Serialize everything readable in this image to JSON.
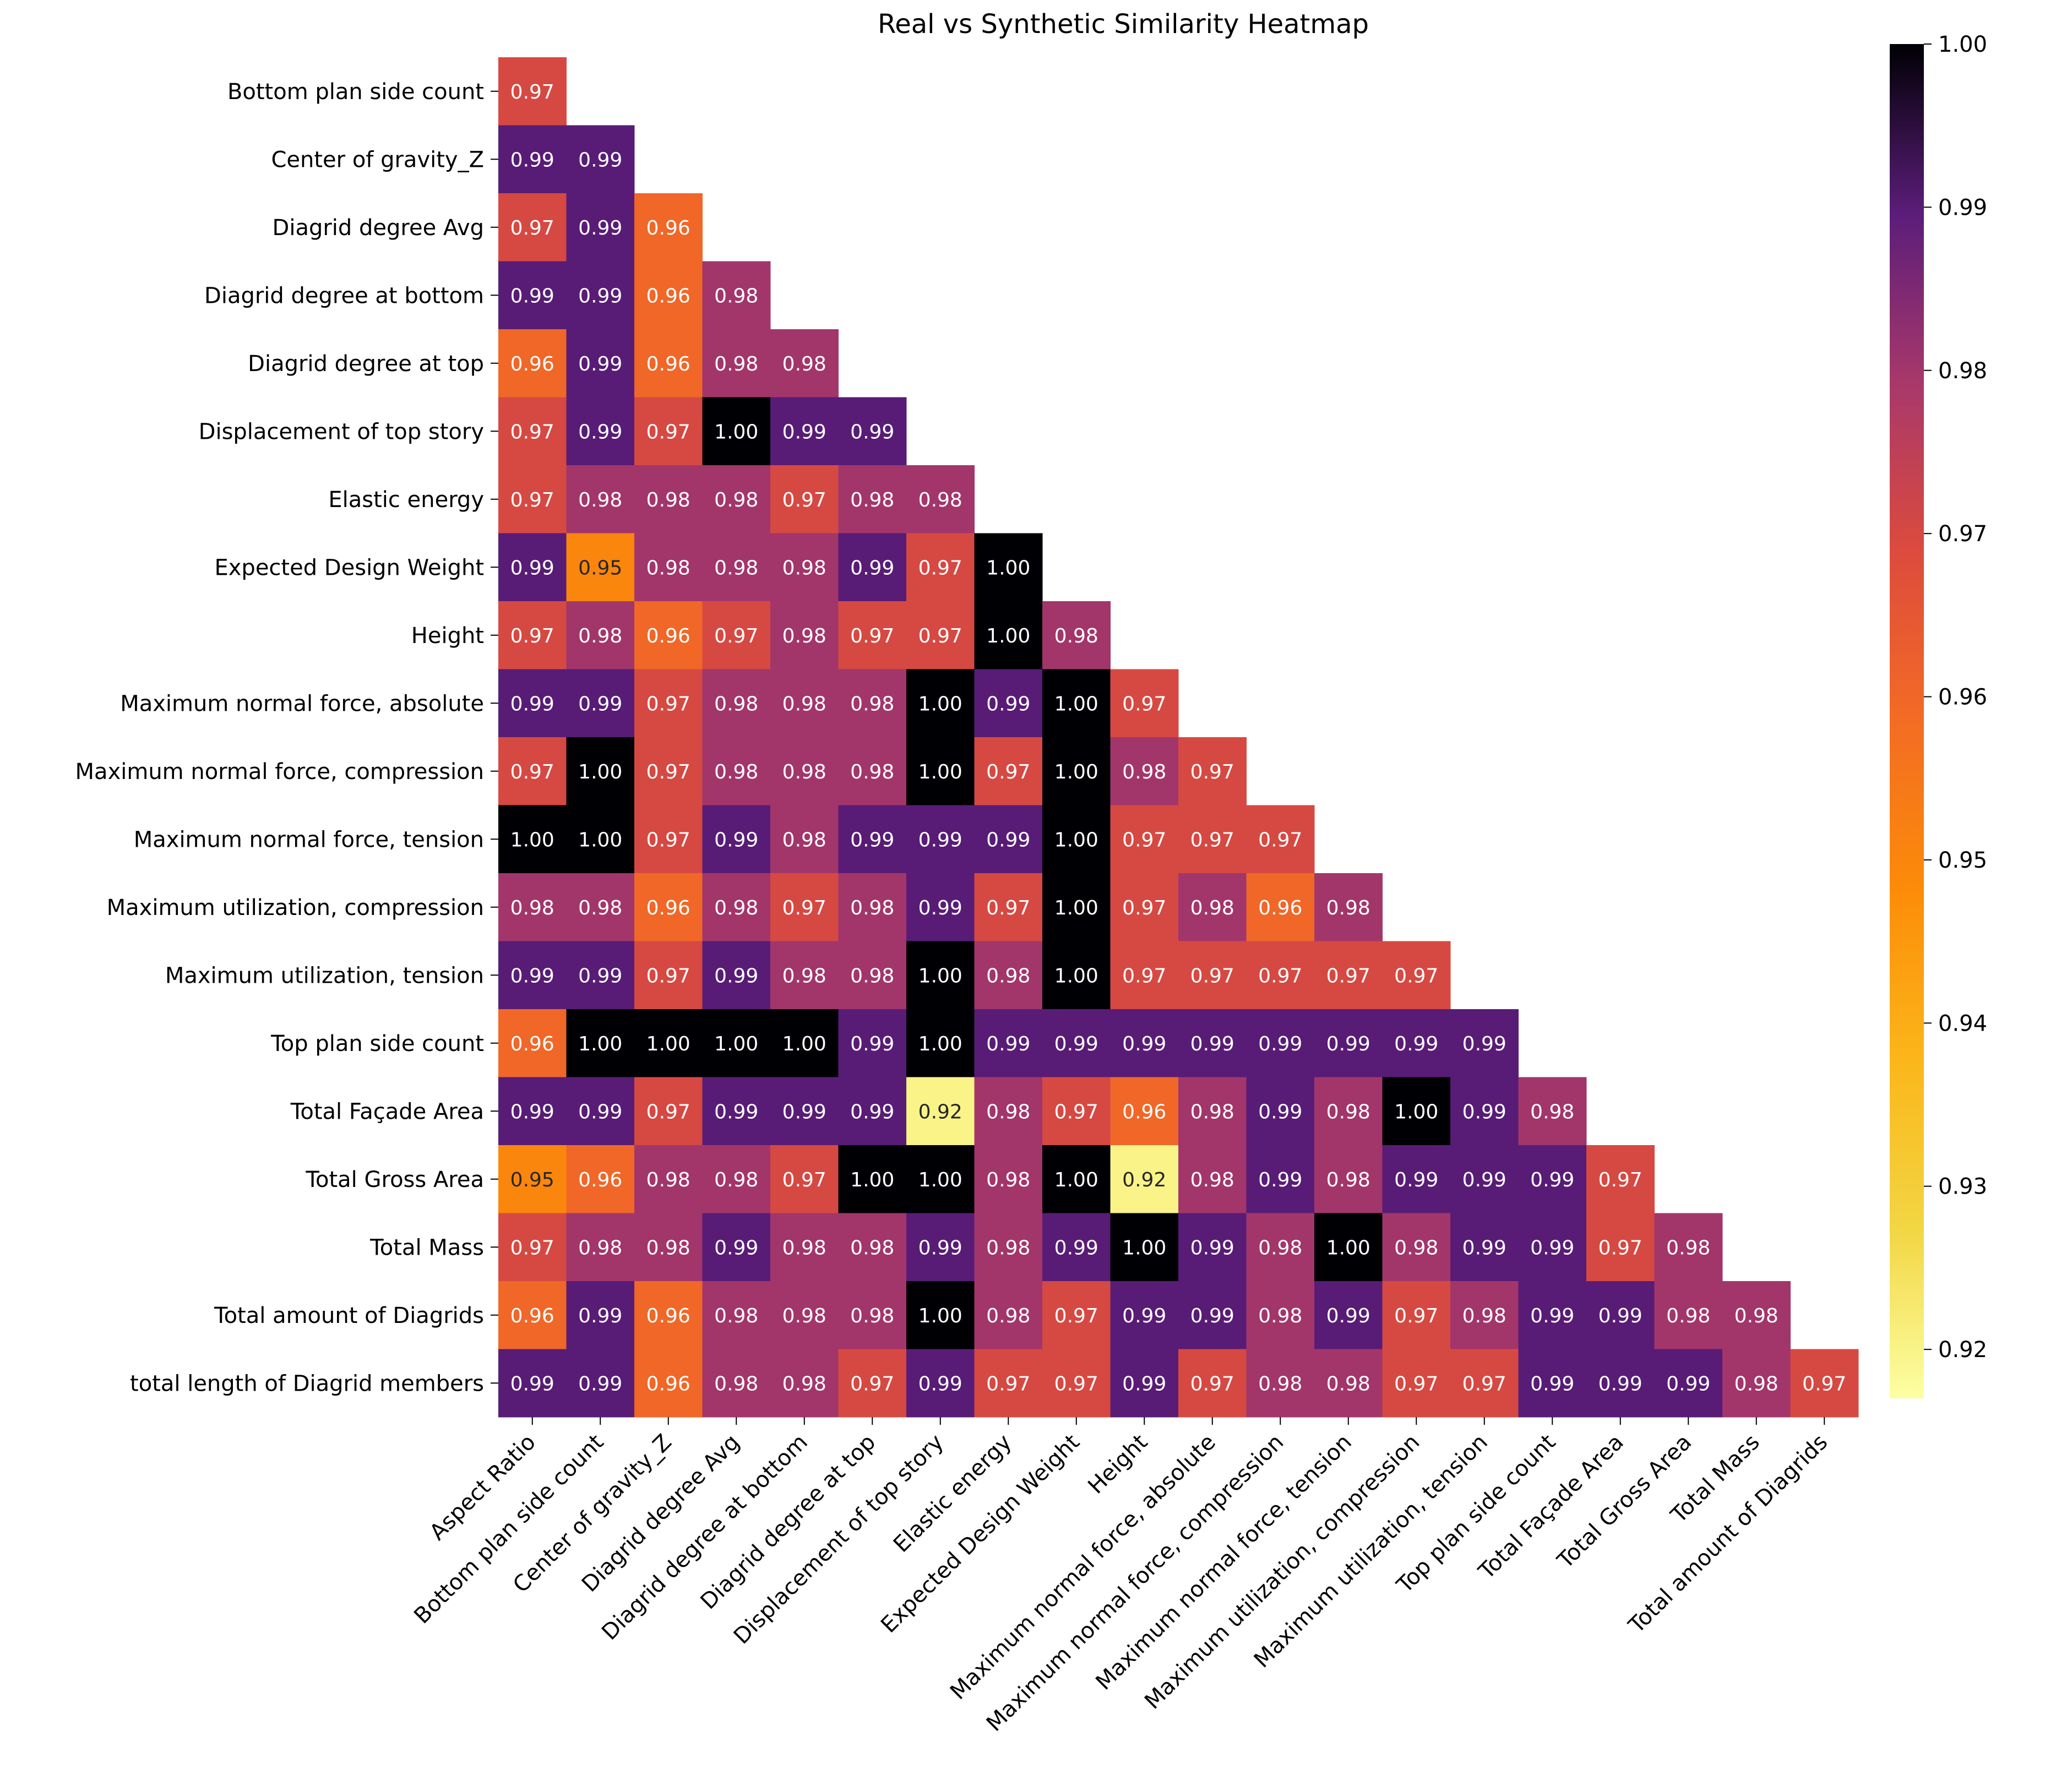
{
  "chart_data": {
    "type": "heatmap",
    "title": "Real vs Synthetic Similarity Heatmap",
    "colormap": "inferno_r",
    "x_labels": [
      "Aspect Ratio",
      "Bottom plan side count",
      "Center of gravity_Z",
      "Diagrid degree Avg",
      "Diagrid degree at bottom",
      "Diagrid degree at top",
      "Displacement of top story",
      "Elastic energy",
      "Expected Design Weight",
      "Height",
      "Maximum normal force, absolute",
      "Maximum normal force, compression",
      "Maximum normal force, tension",
      "Maximum utilization, compression",
      "Maximum utilization, tension",
      "Top plan side count",
      "Total Façade Area",
      "Total Gross Area",
      "Total Mass",
      "Total amount of Diagrids"
    ],
    "y_labels": [
      "Bottom plan side count",
      "Center of gravity_Z",
      "Diagrid degree Avg",
      "Diagrid degree at bottom",
      "Diagrid degree at top",
      "Displacement of top story",
      "Elastic energy",
      "Expected Design Weight",
      "Height",
      "Maximum normal force, absolute",
      "Maximum normal force, compression",
      "Maximum normal force, tension",
      "Maximum utilization, compression",
      "Maximum utilization, tension",
      "Top plan side count",
      "Total Façade Area",
      "Total Gross Area",
      "Total Mass",
      "Total amount of Diagrids",
      "total length of Diagrid members"
    ],
    "values": [
      [
        0.97
      ],
      [
        0.99,
        0.99
      ],
      [
        0.97,
        0.99,
        0.96
      ],
      [
        0.99,
        0.99,
        0.96,
        0.98
      ],
      [
        0.96,
        0.99,
        0.96,
        0.98,
        0.98
      ],
      [
        0.97,
        0.99,
        0.97,
        1.0,
        0.99,
        0.99
      ],
      [
        0.97,
        0.98,
        0.98,
        0.98,
        0.97,
        0.98,
        0.98
      ],
      [
        0.99,
        0.95,
        0.98,
        0.98,
        0.98,
        0.99,
        0.97,
        1.0
      ],
      [
        0.97,
        0.98,
        0.96,
        0.97,
        0.98,
        0.97,
        0.97,
        1.0,
        0.98
      ],
      [
        0.99,
        0.99,
        0.97,
        0.98,
        0.98,
        0.98,
        1.0,
        0.99,
        1.0,
        0.97
      ],
      [
        0.97,
        1.0,
        0.97,
        0.98,
        0.98,
        0.98,
        1.0,
        0.97,
        1.0,
        0.98,
        0.97
      ],
      [
        1.0,
        1.0,
        0.97,
        0.99,
        0.98,
        0.99,
        0.99,
        0.99,
        1.0,
        0.97,
        0.97,
        0.97
      ],
      [
        0.98,
        0.98,
        0.96,
        0.98,
        0.97,
        0.98,
        0.99,
        0.97,
        1.0,
        0.97,
        0.98,
        0.96,
        0.98
      ],
      [
        0.99,
        0.99,
        0.97,
        0.99,
        0.98,
        0.98,
        1.0,
        0.98,
        1.0,
        0.97,
        0.97,
        0.97,
        0.97,
        0.97
      ],
      [
        0.96,
        1.0,
        1.0,
        1.0,
        1.0,
        0.99,
        1.0,
        0.99,
        0.99,
        0.99,
        0.99,
        0.99,
        0.99,
        0.99,
        0.99
      ],
      [
        0.99,
        0.99,
        0.97,
        0.99,
        0.99,
        0.99,
        0.92,
        0.98,
        0.97,
        0.96,
        0.98,
        0.99,
        0.98,
        1.0,
        0.99,
        0.98
      ],
      [
        0.95,
        0.96,
        0.98,
        0.98,
        0.97,
        1.0,
        1.0,
        0.98,
        1.0,
        0.92,
        0.98,
        0.99,
        0.98,
        0.99,
        0.99,
        0.99,
        0.97
      ],
      [
        0.97,
        0.98,
        0.98,
        0.99,
        0.98,
        0.98,
        0.99,
        0.98,
        0.99,
        1.0,
        0.99,
        0.98,
        1.0,
        0.98,
        0.99,
        0.99,
        0.97,
        0.98
      ],
      [
        0.96,
        0.99,
        0.96,
        0.98,
        0.98,
        0.98,
        1.0,
        0.98,
        0.97,
        0.99,
        0.99,
        0.98,
        0.99,
        0.97,
        0.98,
        0.99,
        0.99,
        0.98,
        0.98
      ],
      [
        0.99,
        0.99,
        0.96,
        0.98,
        0.98,
        0.97,
        0.99,
        0.97,
        0.97,
        0.99,
        0.97,
        0.98,
        0.98,
        0.97,
        0.97,
        0.99,
        0.99,
        0.99,
        0.98,
        0.97
      ]
    ],
    "colorbar": {
      "range": [
        0.917,
        1.0
      ],
      "ticks": [
        0.92,
        0.93,
        0.94,
        0.95,
        0.96,
        0.97,
        0.98,
        0.99,
        1.0
      ],
      "tick_labels": [
        "0.92",
        "0.93",
        "0.94",
        "0.95",
        "0.96",
        "0.97",
        "0.98",
        "0.99",
        "1.00"
      ]
    }
  }
}
